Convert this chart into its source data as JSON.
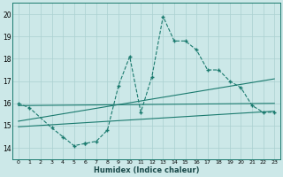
{
  "xlabel": "Humidex (Indice chaleur)",
  "bg_color": "#cce8e8",
  "grid_color": "#aad0d0",
  "line_color": "#1a7a6e",
  "xlim": [
    -0.5,
    23.5
  ],
  "ylim": [
    13.5,
    20.5
  ],
  "yticks": [
    14,
    15,
    16,
    17,
    18,
    19,
    20
  ],
  "xticks": [
    0,
    1,
    2,
    3,
    4,
    5,
    6,
    7,
    8,
    9,
    10,
    11,
    12,
    13,
    14,
    15,
    16,
    17,
    18,
    19,
    20,
    21,
    22,
    23
  ],
  "series1_x": [
    0,
    1,
    3,
    4,
    5,
    6,
    6,
    7,
    8,
    9,
    10,
    11,
    12,
    13,
    14,
    15,
    16,
    17,
    18,
    19,
    20,
    21,
    22,
    23
  ],
  "series1_y": [
    16.0,
    15.8,
    14.9,
    14.5,
    14.1,
    14.2,
    14.2,
    14.3,
    14.8,
    16.8,
    18.1,
    15.6,
    17.2,
    19.9,
    18.8,
    18.8,
    18.4,
    17.5,
    17.5,
    17.0,
    16.7,
    15.9,
    15.6,
    15.6
  ],
  "line1_x": [
    0,
    23
  ],
  "line1_y": [
    15.9,
    16.0
  ],
  "line2_x": [
    0,
    23
  ],
  "line2_y": [
    15.2,
    17.1
  ],
  "line3_x": [
    0,
    23
  ],
  "line3_y": [
    14.95,
    15.65
  ]
}
